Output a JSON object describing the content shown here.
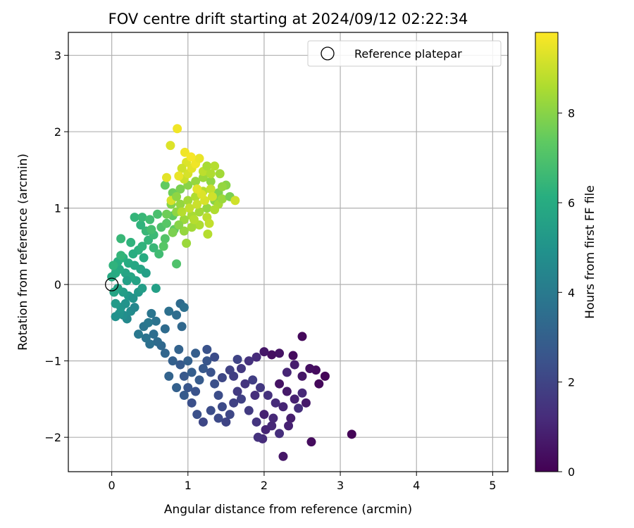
{
  "chart_data": {
    "type": "scatter",
    "title": "FOV centre drift starting at 2024/09/12 02:22:34",
    "xlabel": "Angular distance from reference (arcmin)",
    "ylabel": "Rotation from reference (arcmin)",
    "xlim": [
      -0.57,
      5.2
    ],
    "ylim": [
      -2.45,
      3.3
    ],
    "xticks": [
      0,
      1,
      2,
      3,
      4,
      5
    ],
    "yticks": [
      -2,
      -1,
      0,
      1,
      2,
      3
    ],
    "xtick_labels": [
      "0",
      "1",
      "2",
      "3",
      "4",
      "5"
    ],
    "ytick_labels": [
      "−2",
      "−1",
      "0",
      "1",
      "2",
      "3"
    ],
    "grid": true,
    "legend": {
      "position": "top-right",
      "entries": [
        "Reference platepar"
      ]
    },
    "reference_point": {
      "x": 0,
      "y": 0,
      "marker": "open-circle"
    },
    "colormap": "viridis",
    "colorbar": {
      "label": "Hours from first FF file",
      "range": [
        0,
        9.8
      ],
      "ticks": [
        0,
        2,
        4,
        6,
        8
      ],
      "tick_labels": [
        "0",
        "2",
        "4",
        "6",
        "8"
      ]
    },
    "points": [
      [
        2.5,
        -0.68,
        0.2
      ],
      [
        2.38,
        -0.93,
        0.3
      ],
      [
        2.2,
        -0.9,
        0.5
      ],
      [
        2.8,
        -1.2,
        0.1
      ],
      [
        2.68,
        -1.12,
        0.3
      ],
      [
        2.72,
        -1.3,
        0.2
      ],
      [
        2.6,
        -1.1,
        0.4
      ],
      [
        2.5,
        -1.2,
        0.6
      ],
      [
        2.4,
        -1.05,
        0.8
      ],
      [
        2.3,
        -1.15,
        1.0
      ],
      [
        2.1,
        -0.92,
        0.4
      ],
      [
        2.0,
        -0.88,
        0.6
      ],
      [
        1.9,
        -0.95,
        1.2
      ],
      [
        2.2,
        -1.3,
        0.5
      ],
      [
        2.3,
        -1.4,
        0.7
      ],
      [
        2.4,
        -1.5,
        0.9
      ],
      [
        2.5,
        -1.42,
        1.1
      ],
      [
        2.45,
        -1.62,
        1.3
      ],
      [
        2.35,
        -1.75,
        0.8
      ],
      [
        2.25,
        -1.6,
        1.0
      ],
      [
        2.15,
        -1.55,
        1.2
      ],
      [
        2.05,
        -1.45,
        1.4
      ],
      [
        1.95,
        -1.35,
        1.6
      ],
      [
        1.85,
        -1.25,
        1.8
      ],
      [
        2.0,
        -1.7,
        0.9
      ],
      [
        2.1,
        -1.85,
        1.1
      ],
      [
        2.2,
        -1.95,
        1.3
      ],
      [
        1.9,
        -1.8,
        1.5
      ],
      [
        1.8,
        -1.65,
        1.7
      ],
      [
        1.7,
        -1.5,
        1.9
      ],
      [
        1.98,
        -2.02,
        1.2
      ],
      [
        2.02,
        -1.9,
        1.0
      ],
      [
        1.92,
        -2.0,
        1.4
      ],
      [
        2.25,
        -2.25,
        0.6
      ],
      [
        2.62,
        -2.06,
        0.3
      ],
      [
        3.15,
        -1.96,
        0.1
      ],
      [
        2.55,
        -1.55,
        0.7
      ],
      [
        2.32,
        -1.85,
        0.9
      ],
      [
        2.12,
        -1.75,
        1.1
      ],
      [
        1.88,
        -1.45,
        1.3
      ],
      [
        1.75,
        -1.3,
        1.5
      ],
      [
        1.65,
        -1.4,
        1.7
      ],
      [
        1.6,
        -1.55,
        1.9
      ],
      [
        1.55,
        -1.7,
        2.1
      ],
      [
        1.45,
        -1.6,
        2.2
      ],
      [
        1.4,
        -1.45,
        2.3
      ],
      [
        1.35,
        -1.3,
        2.4
      ],
      [
        1.3,
        -1.15,
        2.5
      ],
      [
        1.25,
        -1.0,
        2.6
      ],
      [
        1.2,
        -1.1,
        2.7
      ],
      [
        1.15,
        -1.25,
        2.8
      ],
      [
        1.1,
        -1.4,
        2.5
      ],
      [
        1.05,
        -1.55,
        2.4
      ],
      [
        1.0,
        -1.35,
        2.6
      ],
      [
        0.95,
        -1.2,
        2.7
      ],
      [
        0.9,
        -1.05,
        2.8
      ],
      [
        1.5,
        -1.8,
        2.0
      ],
      [
        1.4,
        -1.75,
        2.2
      ],
      [
        1.3,
        -1.65,
        2.3
      ],
      [
        1.2,
        -1.8,
        2.1
      ],
      [
        1.12,
        -1.7,
        2.4
      ],
      [
        1.6,
        -1.2,
        1.8
      ],
      [
        1.7,
        -1.1,
        1.6
      ],
      [
        1.8,
        -1.0,
        1.4
      ],
      [
        1.65,
        -0.98,
        2.0
      ],
      [
        1.55,
        -1.12,
        1.9
      ],
      [
        1.45,
        -1.22,
        2.1
      ],
      [
        1.35,
        -0.95,
        2.3
      ],
      [
        1.25,
        -0.85,
        2.5
      ],
      [
        1.1,
        -0.9,
        2.9
      ],
      [
        1.0,
        -1.0,
        3.0
      ],
      [
        0.88,
        -0.85,
        3.1
      ],
      [
        0.8,
        -1.0,
        3.0
      ],
      [
        0.75,
        -1.2,
        3.1
      ],
      [
        0.85,
        -1.35,
        3.0
      ],
      [
        0.95,
        -1.45,
        2.8
      ],
      [
        1.05,
        -1.15,
        2.9
      ],
      [
        0.7,
        -0.9,
        3.2
      ],
      [
        0.65,
        -0.8,
        3.3
      ],
      [
        0.6,
        -0.75,
        3.4
      ],
      [
        0.55,
        -0.65,
        3.5
      ],
      [
        0.5,
        -0.78,
        3.6
      ],
      [
        0.45,
        -0.7,
        3.7
      ],
      [
        0.42,
        -0.55,
        3.8
      ],
      [
        0.35,
        -0.65,
        3.9
      ],
      [
        0.75,
        -0.35,
        3.6
      ],
      [
        0.85,
        -0.4,
        3.5
      ],
      [
        0.9,
        -0.25,
        3.4
      ],
      [
        0.95,
        -0.3,
        3.6
      ],
      [
        0.92,
        -0.55,
        3.3
      ],
      [
        0.7,
        -0.58,
        3.4
      ],
      [
        0.58,
        -0.48,
        3.7
      ],
      [
        0.52,
        -0.38,
        3.8
      ],
      [
        0.48,
        -0.5,
        3.9
      ],
      [
        0.2,
        -0.45,
        4.6
      ],
      [
        0.15,
        -0.4,
        4.8
      ],
      [
        0.1,
        -0.38,
        5.0
      ],
      [
        0.05,
        -0.42,
        4.9
      ],
      [
        0.12,
        -0.3,
        5.1
      ],
      [
        0.18,
        -0.25,
        5.0
      ],
      [
        0.25,
        -0.35,
        4.7
      ],
      [
        0.3,
        -0.3,
        4.5
      ],
      [
        0.22,
        -0.15,
        5.2
      ],
      [
        0.15,
        -0.1,
        5.4
      ],
      [
        0.08,
        -0.05,
        5.6
      ],
      [
        0.05,
        -0.25,
        5.3
      ],
      [
        0.28,
        -0.18,
        5.0
      ],
      [
        0.35,
        -0.1,
        5.2
      ],
      [
        0.4,
        -0.05,
        5.4
      ],
      [
        0.32,
        0.05,
        5.6
      ],
      [
        0.25,
        0.1,
        5.8
      ],
      [
        0.18,
        0.15,
        5.7
      ],
      [
        0.1,
        0.2,
        5.9
      ],
      [
        0.05,
        0.15,
        6.0
      ],
      [
        0.08,
        0.3,
        6.1
      ],
      [
        0.15,
        0.35,
        6.2
      ],
      [
        0.22,
        0.28,
        6.0
      ],
      [
        0.3,
        0.25,
        5.8
      ],
      [
        0.38,
        0.2,
        5.7
      ],
      [
        0.45,
        0.15,
        5.5
      ],
      [
        0.42,
        0.35,
        6.0
      ],
      [
        0.35,
        0.45,
        6.2
      ],
      [
        0.28,
        0.4,
        6.1
      ],
      [
        0.12,
        0.38,
        6.4
      ],
      [
        0.02,
        0.25,
        6.3
      ],
      [
        0.0,
        0.1,
        5.9
      ],
      [
        0.03,
        -0.1,
        5.7
      ],
      [
        0.2,
        0.05,
        5.5
      ],
      [
        0.4,
        0.5,
        6.3
      ],
      [
        0.48,
        0.58,
        6.4
      ],
      [
        0.55,
        0.48,
        6.5
      ],
      [
        0.62,
        0.4,
        6.7
      ],
      [
        0.55,
        0.65,
        6.6
      ],
      [
        0.45,
        0.7,
        6.5
      ],
      [
        0.38,
        0.78,
        6.3
      ],
      [
        0.3,
        0.88,
        6.4
      ],
      [
        0.4,
        0.88,
        6.5
      ],
      [
        0.5,
        0.85,
        6.7
      ],
      [
        0.6,
        0.92,
        6.9
      ],
      [
        0.52,
        0.72,
        6.8
      ],
      [
        0.65,
        0.75,
        7.0
      ],
      [
        0.7,
        0.6,
        7.1
      ],
      [
        0.72,
        0.8,
        7.2
      ],
      [
        0.8,
        0.9,
        7.3
      ],
      [
        0.82,
        0.72,
        7.4
      ],
      [
        0.68,
        0.5,
        7.2
      ],
      [
        0.85,
        0.27,
        7.0
      ],
      [
        0.58,
        -0.05,
        5.5
      ],
      [
        0.12,
        0.6,
        6.5
      ],
      [
        0.25,
        0.55,
        6.3
      ],
      [
        0.7,
        1.3,
        7.4
      ],
      [
        0.8,
        1.2,
        7.6
      ],
      [
        0.9,
        1.25,
        7.8
      ],
      [
        1.0,
        1.3,
        8.0
      ],
      [
        1.1,
        1.35,
        8.2
      ],
      [
        1.2,
        1.4,
        8.3
      ],
      [
        1.3,
        1.35,
        8.1
      ],
      [
        1.4,
        1.2,
        7.9
      ],
      [
        1.35,
        1.1,
        8.0
      ],
      [
        1.25,
        1.0,
        8.2
      ],
      [
        1.15,
        0.95,
        8.4
      ],
      [
        1.05,
        0.9,
        8.5
      ],
      [
        0.95,
        0.85,
        8.3
      ],
      [
        0.85,
        0.95,
        8.1
      ],
      [
        0.78,
        1.05,
        7.9
      ],
      [
        0.9,
        1.05,
        8.2
      ],
      [
        1.0,
        1.1,
        8.4
      ],
      [
        1.1,
        1.15,
        8.6
      ],
      [
        1.2,
        1.22,
        8.7
      ],
      [
        1.3,
        1.25,
        8.9
      ],
      [
        1.4,
        1.05,
        8.5
      ],
      [
        1.45,
        1.12,
        8.3
      ],
      [
        1.35,
        0.98,
        8.6
      ],
      [
        1.25,
        0.88,
        8.8
      ],
      [
        1.15,
        0.78,
        8.6
      ],
      [
        1.05,
        0.75,
        8.4
      ],
      [
        0.95,
        0.7,
        8.2
      ],
      [
        0.88,
        0.78,
        8.0
      ],
      [
        0.8,
        0.68,
        7.8
      ],
      [
        0.92,
        0.95,
        8.7
      ],
      [
        1.02,
        1.0,
        8.9
      ],
      [
        1.12,
        1.05,
        9.0
      ],
      [
        1.22,
        1.1,
        9.2
      ],
      [
        1.32,
        1.15,
        9.1
      ],
      [
        0.95,
        1.38,
        9.0
      ],
      [
        1.0,
        1.45,
        9.2
      ],
      [
        1.05,
        1.52,
        9.4
      ],
      [
        1.1,
        1.58,
        9.6
      ],
      [
        1.15,
        1.65,
        9.5
      ],
      [
        0.98,
        1.6,
        9.3
      ],
      [
        0.92,
        1.52,
        9.1
      ],
      [
        0.88,
        1.42,
        9.5
      ],
      [
        0.96,
        1.73,
        9.6
      ],
      [
        1.04,
        1.67,
        9.7
      ],
      [
        1.2,
        1.48,
        8.8
      ],
      [
        1.25,
        1.55,
        8.5
      ],
      [
        1.3,
        1.45,
        8.6
      ],
      [
        1.35,
        1.55,
        8.7
      ],
      [
        1.42,
        1.45,
        8.4
      ],
      [
        1.5,
        1.3,
        8.0
      ],
      [
        1.55,
        1.15,
        7.8
      ],
      [
        1.45,
        1.28,
        8.2
      ],
      [
        1.28,
        0.8,
        8.9
      ],
      [
        1.26,
        0.66,
        8.7
      ],
      [
        0.98,
        0.54,
        8.3
      ],
      [
        0.77,
        1.82,
        9.3
      ],
      [
        0.86,
        2.04,
        9.6
      ],
      [
        0.72,
        1.4,
        9.4
      ],
      [
        0.78,
        1.1,
        9.2
      ],
      [
        1.62,
        1.1,
        9.1
      ],
      [
        0.72,
        0.92,
        7.6
      ],
      [
        1.08,
        0.85,
        8.7
      ],
      [
        1.18,
        1.18,
        9.3
      ],
      [
        0.85,
        1.15,
        8.1
      ],
      [
        1.12,
        1.25,
        9.4
      ]
    ]
  }
}
